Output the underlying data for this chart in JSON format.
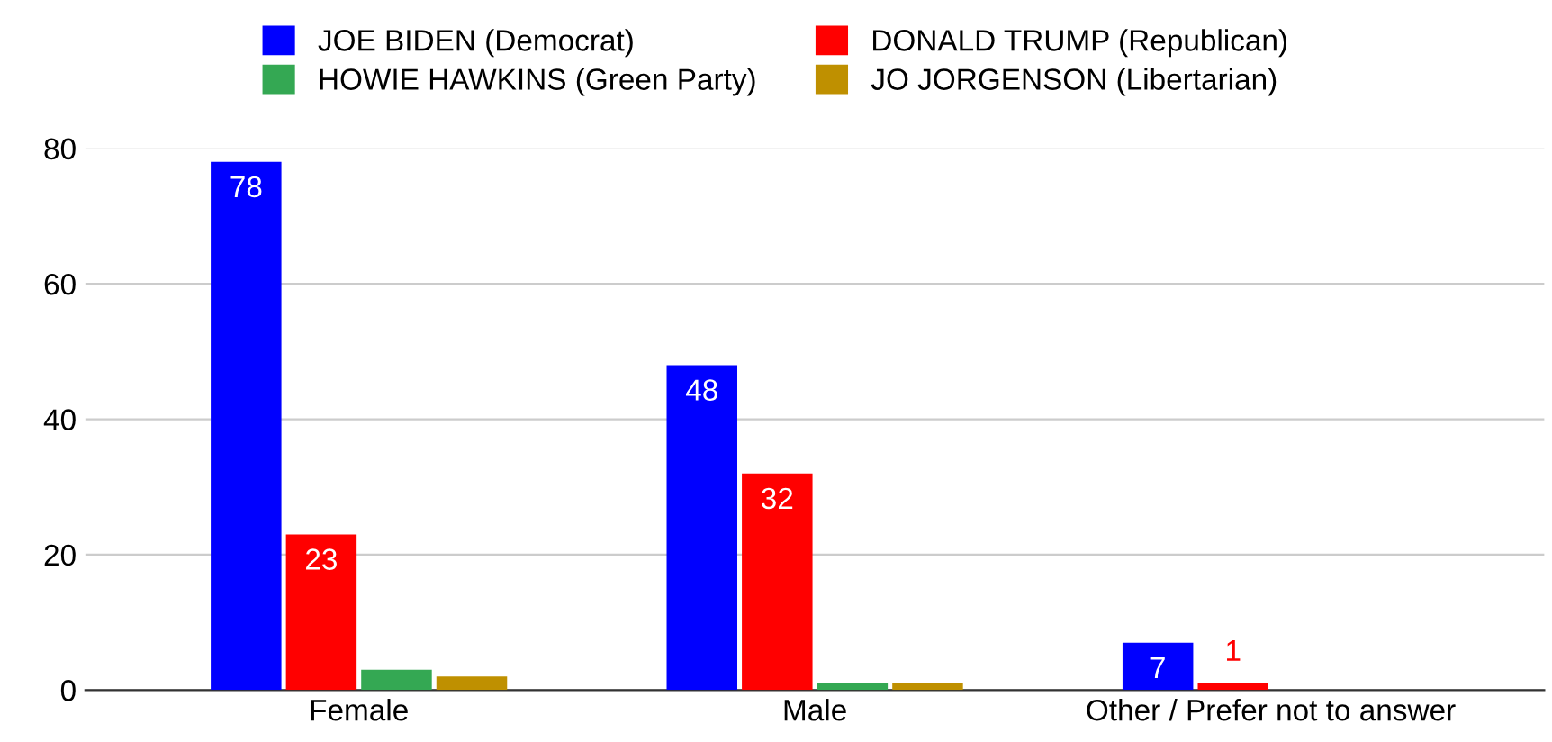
{
  "chart_data": {
    "type": "bar",
    "categories": [
      "Female",
      "Male",
      "Other / Prefer not to answer"
    ],
    "series": [
      {
        "name": "JOE BIDEN (Democrat)",
        "color": "#0000ff",
        "values": [
          78,
          48,
          7
        ],
        "value_labels": [
          "78",
          "48",
          "7"
        ]
      },
      {
        "name": "DONALD TRUMP (Republican)",
        "color": "#ff0000",
        "values": [
          23,
          32,
          1
        ],
        "value_labels": [
          "23",
          "32",
          "1"
        ]
      },
      {
        "name": "HOWIE HAWKINS (Green Party)",
        "color": "#34a853",
        "values": [
          3,
          1,
          0
        ],
        "value_labels": [
          null,
          null,
          null
        ]
      },
      {
        "name": "JO JORGENSON (Libertarian)",
        "color": "#bf9000",
        "values": [
          2,
          1,
          0
        ],
        "value_labels": [
          null,
          null,
          null
        ]
      }
    ],
    "ylim": [
      0,
      80
    ],
    "yticks": [
      0,
      20,
      40,
      60,
      80
    ],
    "grid": "y",
    "legend": "top"
  }
}
